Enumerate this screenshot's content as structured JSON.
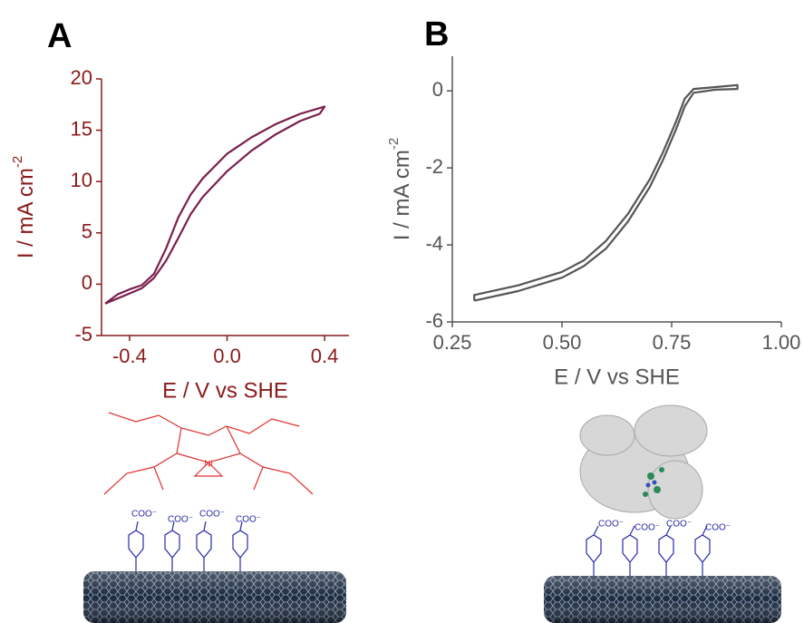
{
  "chart_data": [
    {
      "type": "line",
      "panel_label": "A",
      "x_label": "E / V vs SHE",
      "y_label": "I / mA cm",
      "y_label_superscript": "-2",
      "axis_color": "#8b1a1a",
      "x": [
        -0.5,
        -0.45,
        -0.4,
        -0.35,
        -0.3,
        -0.25,
        -0.2,
        -0.15,
        -0.1,
        0,
        0.1,
        0.2,
        0.3,
        0.4,
        0.38,
        0.3,
        0.2,
        0.1,
        0,
        -0.1,
        -0.15,
        -0.2,
        -0.25,
        -0.3,
        -0.35,
        -0.4,
        -0.45,
        -0.5
      ],
      "series": [
        {
          "color": "#7a1f4d",
          "values": [
            -1.9,
            -1.0,
            -0.5,
            -0.1,
            1,
            3.5,
            6.5,
            8.7,
            10.3,
            12.7,
            14.3,
            15.6,
            16.6,
            17.3,
            16.6,
            15.9,
            14.6,
            13,
            11,
            8.5,
            6.8,
            4.5,
            2.3,
            0.6,
            -0.4,
            -0.9,
            -1.4,
            -1.9
          ]
        }
      ],
      "xlim": [
        -0.515,
        0.5
      ],
      "xticks": [
        -0.4,
        {
          "value": 0,
          "label": "0.0"
        },
        0.4
      ],
      "ylim": [
        -5,
        20
      ],
      "yticks": [
        -5,
        0,
        5,
        10,
        15,
        20
      ]
    },
    {
      "type": "line",
      "panel_label": "B",
      "x_label": "E / V vs SHE",
      "y_label": "I / mA cm",
      "y_label_superscript": "-2",
      "axis_color": "#555555",
      "x": [
        0.3,
        0.4,
        0.5,
        0.55,
        0.6,
        0.65,
        0.7,
        0.73,
        0.76,
        0.78,
        0.8,
        0.85,
        0.9,
        0.9,
        0.85,
        0.8,
        0.78,
        0.76,
        0.73,
        0.7,
        0.65,
        0.6,
        0.55,
        0.5,
        0.4,
        0.3,
        0.3
      ],
      "series": [
        {
          "color": "#555555",
          "values": [
            -5.45,
            -5.2,
            -4.85,
            -4.55,
            -4.1,
            -3.4,
            -2.5,
            -1.8,
            -1.0,
            -0.4,
            -0.05,
            0.03,
            0.05,
            0.15,
            0.1,
            0.05,
            -0.2,
            -0.8,
            -1.6,
            -2.3,
            -3.2,
            -3.9,
            -4.4,
            -4.7,
            -5.05,
            -5.3,
            -5.45
          ]
        }
      ],
      "xlim": [
        0.25,
        1.0
      ],
      "xticks": [
        0.25,
        {
          "value": 0.5,
          "label": "0.50"
        },
        0.75,
        {
          "value": 1.0,
          "label": "1.00"
        }
      ],
      "ylim": [
        -6,
        0.9
      ],
      "yticks": [
        -6,
        -4,
        -2,
        0
      ]
    }
  ],
  "illustrations": {
    "linker_label": "COO⁻",
    "catalyst_center": "Ni"
  }
}
